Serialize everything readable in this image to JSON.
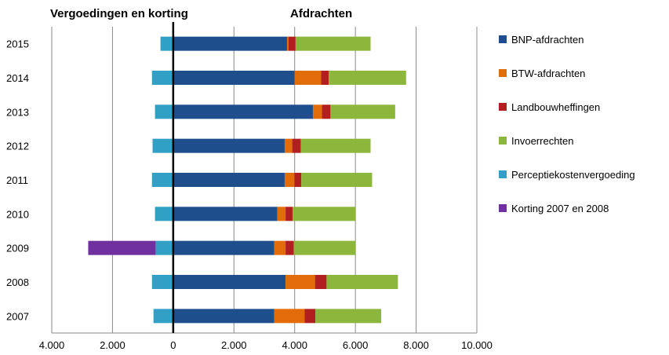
{
  "chart_data": {
    "type": "bar",
    "orientation": "horizontal",
    "stacked": true,
    "left_header": "Vergoedingen en korting",
    "right_header": "Afdrachten",
    "categories": [
      "2015",
      "2014",
      "2013",
      "2012",
      "2011",
      "2010",
      "2009",
      "2008",
      "2007"
    ],
    "xlim": [
      -4000,
      10000
    ],
    "x_ticks": [
      -4000,
      -2000,
      0,
      2000,
      4000,
      6000,
      8000,
      10000
    ],
    "x_tick_labels": [
      "4.000",
      "2.000",
      "0",
      "2.000",
      "4.000",
      "6.000",
      "8.000",
      "10.000"
    ],
    "grid": true,
    "legend_position": "right",
    "series": [
      {
        "name": "BNP-afdrachten",
        "color": "#1f4e8c",
        "values": [
          3750,
          4000,
          4600,
          3670,
          3670,
          3430,
          3330,
          3700,
          3330
        ]
      },
      {
        "name": "BTW-afdrachten",
        "color": "#e36c0a",
        "values": [
          50,
          870,
          300,
          250,
          320,
          270,
          370,
          970,
          1000
        ]
      },
      {
        "name": "Landbouwheffingen",
        "color": "#b21f1f",
        "values": [
          230,
          250,
          280,
          280,
          230,
          230,
          270,
          380,
          350
        ]
      },
      {
        "name": "Invoerrechten",
        "color": "#8db63c",
        "values": [
          2470,
          2550,
          2130,
          2300,
          2330,
          2070,
          2030,
          2350,
          2170
        ]
      },
      {
        "name": "Perceptiekostenvergoeding",
        "color": "#31a0c4",
        "values": [
          -420,
          -700,
          -600,
          -680,
          -700,
          -600,
          -580,
          -700,
          -650
        ]
      },
      {
        "name": "Korting 2007 en 2008",
        "color": "#7030a0",
        "values": [
          0,
          0,
          0,
          0,
          0,
          0,
          -2220,
          0,
          0
        ]
      }
    ]
  }
}
